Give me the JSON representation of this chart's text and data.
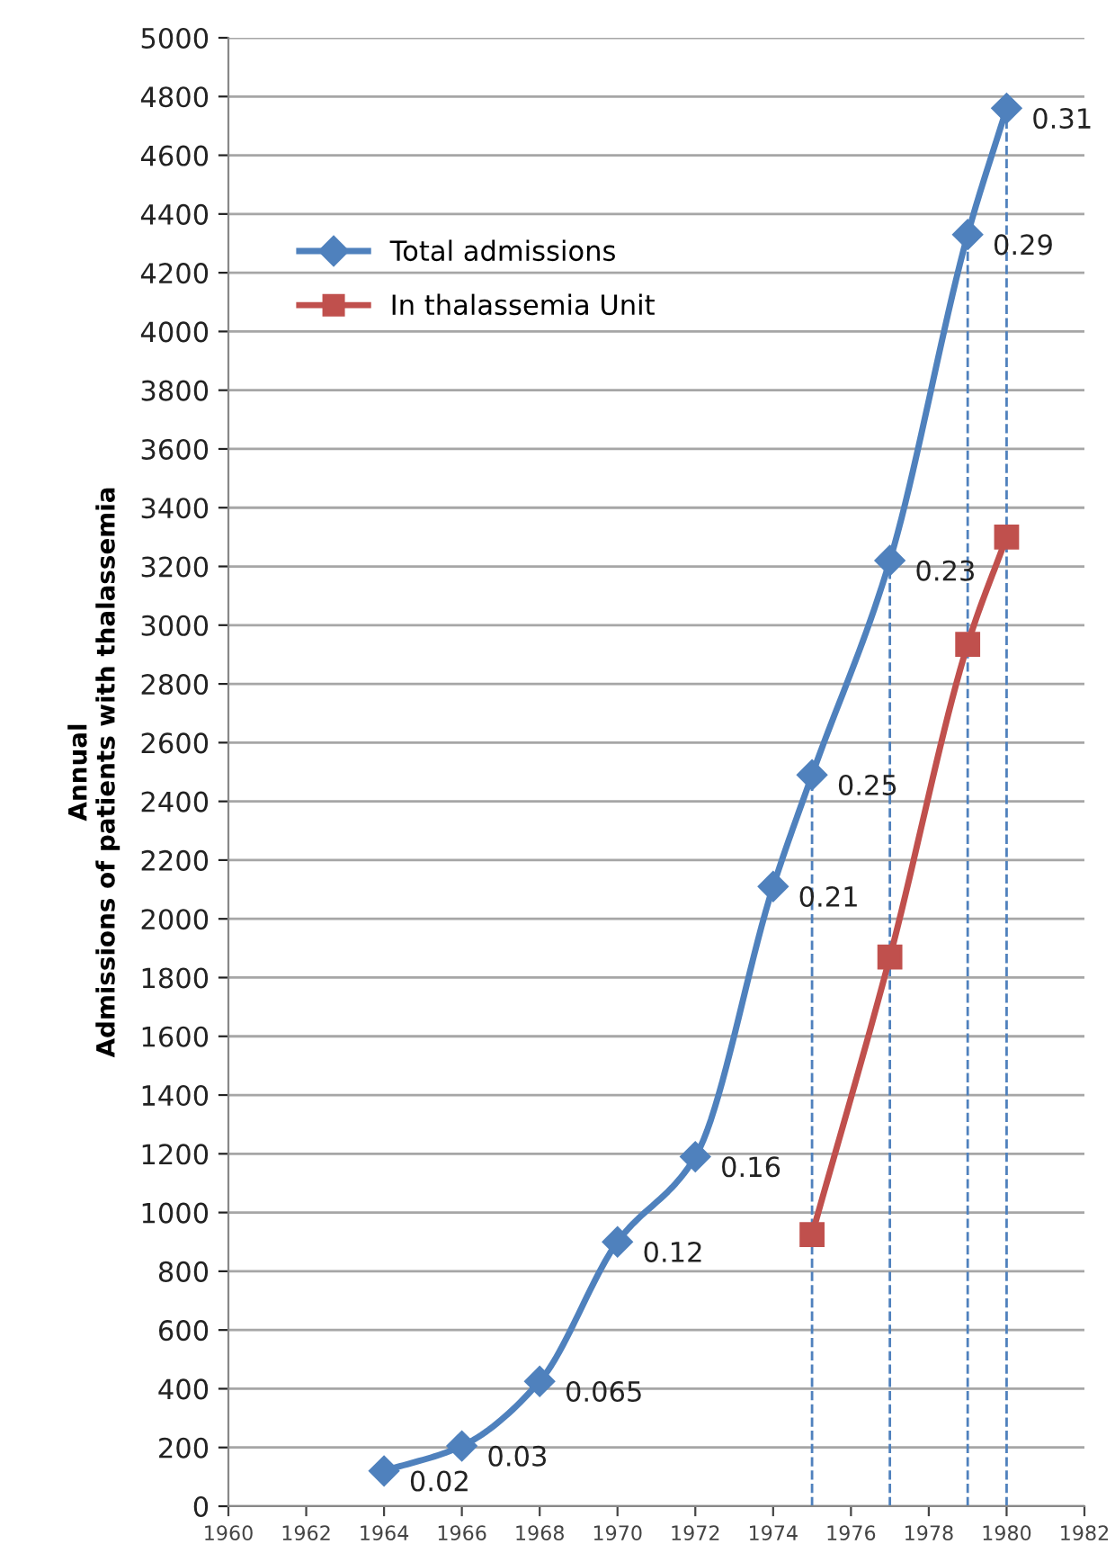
{
  "chart_data": {
    "type": "line",
    "ylabel": "Annual\nAdmissions of patients with thalassemia",
    "series": [
      {
        "name": "Total admissions",
        "color": "#4f81bd",
        "marker": "diamond",
        "x": [
          1964,
          1966,
          1968,
          1970,
          1972,
          1974,
          1975,
          1977,
          1979,
          1980
        ],
        "values": [
          120,
          205,
          425,
          900,
          1190,
          2110,
          2490,
          3220,
          4330,
          4760
        ]
      },
      {
        "name": "In thalassemia Unit",
        "color": "#c0504d",
        "marker": "square",
        "x": [
          1975,
          1977,
          1979,
          1980
        ],
        "values": [
          925,
          1870,
          2935,
          3300
        ]
      }
    ],
    "annotations": [
      {
        "text": "0.02",
        "x": 1964,
        "y": 120
      },
      {
        "text": "0.03",
        "x": 1966,
        "y": 205
      },
      {
        "text": "0.065",
        "x": 1968,
        "y": 425
      },
      {
        "text": "0.12",
        "x": 1970,
        "y": 900
      },
      {
        "text": "0.16",
        "x": 1972,
        "y": 1190
      },
      {
        "text": "0.21",
        "x": 1974,
        "y": 2110
      },
      {
        "text": "0.25",
        "x": 1975,
        "y": 2490
      },
      {
        "text": "0.23",
        "x": 1977,
        "y": 3220
      },
      {
        "text": "0.29",
        "x": 1979,
        "y": 4330
      },
      {
        "text": "0.31",
        "x": 1980,
        "y": 4760
      }
    ],
    "ref_lines": [
      {
        "axis": "x",
        "value": 1975,
        "color": "#4f81bd",
        "line_style": "dashed"
      },
      {
        "axis": "x",
        "value": 1977,
        "color": "#4f81bd",
        "line_style": "dashed"
      },
      {
        "axis": "x",
        "value": 1979,
        "color": "#4f81bd",
        "line_style": "dashed"
      },
      {
        "axis": "x",
        "value": 1980,
        "color": "#4f81bd",
        "line_style": "dashed"
      }
    ],
    "xlim": [
      1960,
      1982
    ],
    "xticks": [
      1960,
      1962,
      1964,
      1966,
      1968,
      1970,
      1972,
      1974,
      1976,
      1978,
      1980,
      1982
    ],
    "ylim": [
      0,
      5000
    ],
    "yticks": [
      0,
      200,
      400,
      600,
      800,
      1000,
      1200,
      1400,
      1600,
      1800,
      2000,
      2200,
      2400,
      2600,
      2800,
      3000,
      3200,
      3400,
      3600,
      3800,
      4000,
      4200,
      4400,
      4600,
      4800,
      5000
    ],
    "grid": "y",
    "legend": "top left",
    "line_style": "solid"
  }
}
